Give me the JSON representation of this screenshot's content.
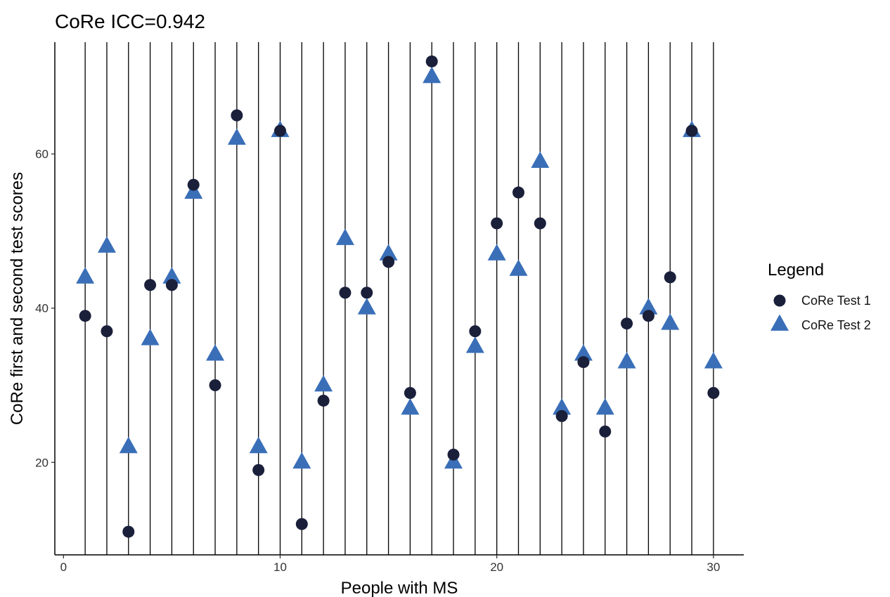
{
  "chart_data": {
    "type": "scatter",
    "title": "CoRe ICC=0.942",
    "xlabel": "People with MS",
    "ylabel": "CoRe first and second test scores",
    "xlim": [
      -0.4,
      31.4
    ],
    "ylim": [
      8,
      74.5
    ],
    "xticks": [
      0,
      10,
      20,
      30
    ],
    "yticks": [
      20,
      40,
      60
    ],
    "grid": "vertical lines at each person",
    "legend": {
      "title": "Legend",
      "placement": "right"
    },
    "x": [
      1,
      2,
      3,
      4,
      5,
      6,
      7,
      8,
      9,
      10,
      11,
      12,
      13,
      14,
      15,
      16,
      17,
      18,
      19,
      20,
      21,
      22,
      23,
      24,
      25,
      26,
      27,
      28,
      29,
      30
    ],
    "series": [
      {
        "name": "CoRe Test 1",
        "marker": "circle",
        "color": "#1a1f3a",
        "values": [
          39,
          37,
          11,
          43,
          43,
          56,
          30,
          65,
          19,
          63,
          12,
          28,
          42,
          42,
          46,
          29,
          72,
          21,
          37,
          51,
          55,
          51,
          26,
          33,
          24,
          38,
          39,
          44,
          63,
          29
        ]
      },
      {
        "name": "CoRe Test 2",
        "marker": "triangle",
        "color": "#3a6fb8",
        "values": [
          44,
          48,
          22,
          36,
          44,
          55,
          34,
          62,
          22,
          63,
          20,
          30,
          49,
          40,
          47,
          27,
          70,
          20,
          35,
          47,
          45,
          59,
          27,
          34,
          27,
          33,
          40,
          38,
          63,
          33
        ]
      }
    ]
  }
}
